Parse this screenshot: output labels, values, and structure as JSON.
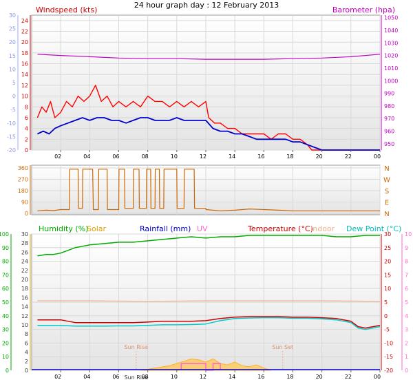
{
  "chart_data": [
    {
      "type": "line",
      "title": "24 hour graph day : 12 February 2013",
      "left_axis_label": "Windspeed (kts)",
      "right_axis_label": "Barometer (hpa)",
      "outer_left_ticks": [
        "30",
        "25",
        "20",
        "15",
        "10",
        "5",
        "0",
        "-5",
        "-10",
        "-15",
        "-20"
      ],
      "left_ticks": [
        "24",
        "22",
        "20",
        "18",
        "16",
        "14",
        "12",
        "10",
        "8",
        "6",
        "4",
        "2",
        "0"
      ],
      "right_ticks": [
        "1050",
        "1040",
        "1030",
        "1020",
        "1010",
        "1000",
        "990",
        "980",
        "970",
        "960",
        "950"
      ],
      "x_ticks": [
        "02",
        "04",
        "06",
        "08",
        "10",
        "12",
        "14",
        "16",
        "18",
        "20",
        "22",
        "00"
      ],
      "x_range_hours": [
        0,
        24
      ],
      "windspeed_ylim": [
        0,
        25
      ],
      "barometer_ylim": [
        945,
        1052
      ],
      "outer_left_ylim": [
        -20,
        30
      ],
      "series": [
        {
          "name": "Windspeed (kts)",
          "color": "#ff0000",
          "x": [
            0.4,
            0.7,
            1.0,
            1.3,
            1.6,
            2.0,
            2.4,
            2.8,
            3.2,
            3.6,
            4.0,
            4.4,
            4.8,
            5.2,
            5.6,
            6.0,
            6.5,
            7.0,
            7.5,
            8.0,
            8.5,
            9.0,
            9.5,
            10.0,
            10.5,
            11.0,
            11.5,
            12.0,
            12.2,
            12.6,
            13.0,
            13.5,
            14.0,
            14.5,
            15.0,
            15.5,
            16.0,
            16.5,
            17.0,
            17.5,
            18.0,
            18.5,
            19.0,
            19.3,
            19.6,
            20.0,
            20.5,
            21.0,
            21.5,
            22.0,
            22.5,
            23.0,
            23.5,
            24.0
          ],
          "y": [
            6,
            8,
            7,
            9,
            6,
            7,
            9,
            8,
            10,
            9,
            10,
            12,
            9,
            10,
            8,
            9,
            8,
            9,
            8,
            10,
            9,
            9,
            8,
            9,
            8,
            9,
            8,
            9,
            6,
            5,
            5,
            4,
            4,
            3,
            3,
            3,
            3,
            2,
            3,
            3,
            2,
            2,
            1,
            0,
            0,
            0,
            0,
            0,
            0,
            0,
            0,
            0,
            0,
            0
          ]
        },
        {
          "name": "Windspeed (kts) average",
          "color": "#0000cc",
          "x": [
            0.4,
            0.8,
            1.2,
            1.6,
            2.0,
            2.5,
            3.0,
            3.5,
            4.0,
            4.5,
            5.0,
            5.5,
            6.0,
            6.5,
            7.0,
            7.5,
            8.0,
            8.5,
            9.0,
            9.5,
            10.0,
            10.5,
            11.0,
            11.5,
            12.0,
            12.5,
            13.0,
            13.5,
            14.0,
            14.5,
            15.0,
            15.5,
            16.0,
            16.5,
            17.0,
            17.5,
            18.0,
            18.5,
            19.0,
            19.5,
            20.0,
            21.0,
            22.0,
            23.0,
            24.0
          ],
          "y": [
            3,
            3.5,
            3,
            4,
            4.5,
            5,
            5.5,
            6,
            5.5,
            6,
            6,
            5.5,
            5.5,
            5,
            5.5,
            6,
            6,
            5.5,
            5.5,
            5.5,
            6,
            5.5,
            5.5,
            5.5,
            5.5,
            4,
            3.5,
            3.5,
            3,
            3,
            2.5,
            2,
            2,
            2,
            2,
            2,
            1.5,
            1.5,
            1,
            0.5,
            0,
            0,
            0,
            0,
            0
          ]
        },
        {
          "name": "Barometer (hpa)",
          "color": "#c000c0",
          "x": [
            0.4,
            2,
            4,
            6,
            8,
            10,
            12,
            14,
            16,
            18,
            20,
            22,
            24
          ],
          "y": [
            1021,
            1020,
            1019,
            1018,
            1017.5,
            1017.5,
            1017,
            1017,
            1017,
            1017.5,
            1018,
            1019,
            1021
          ]
        }
      ]
    },
    {
      "type": "line",
      "title": "",
      "left_ticks": [
        "360",
        "270",
        "180",
        "90",
        "0"
      ],
      "right_labels": [
        "N",
        "W",
        "S",
        "E",
        "N"
      ],
      "x_range_hours": [
        0,
        24
      ],
      "ylim": [
        0,
        360
      ],
      "series": [
        {
          "name": "Wind direction",
          "color": "#cc6600",
          "x": [
            0.4,
            1,
            1.5,
            2,
            2.6,
            2.62,
            3.2,
            3.22,
            3.5,
            3.52,
            4.2,
            4.25,
            4.6,
            4.62,
            5.2,
            5.22,
            6.0,
            6.02,
            6.4,
            6.42,
            7.0,
            7.02,
            7.4,
            7.42,
            7.9,
            7.92,
            8.2,
            8.22,
            8.5,
            8.52,
            8.8,
            8.82,
            9.1,
            9.12,
            10.0,
            10.02,
            10.5,
            10.52,
            11.2,
            11.22,
            12.0,
            12.02,
            13,
            14,
            15,
            16,
            17,
            18,
            19,
            20,
            21,
            22,
            23,
            24
          ],
          "y": [
            20,
            25,
            22,
            30,
            30,
            350,
            350,
            40,
            40,
            350,
            350,
            30,
            30,
            350,
            350,
            30,
            30,
            350,
            350,
            40,
            40,
            350,
            350,
            40,
            40,
            350,
            350,
            40,
            40,
            350,
            350,
            40,
            40,
            350,
            350,
            40,
            40,
            350,
            350,
            40,
            40,
            30,
            20,
            25,
            35,
            30,
            25,
            20,
            20,
            20,
            20,
            20,
            20,
            20
          ]
        }
      ]
    },
    {
      "type": "line",
      "title": "",
      "legend": [
        "Humidity (%)",
        "Solar",
        "Rainfall (mm)",
        "UV",
        "Temperature (°C)",
        "Indoor",
        "Dew Point (°C)"
      ],
      "left_ticks_humidity": [
        "100",
        "90",
        "80",
        "70",
        "60",
        "50",
        "40",
        "30",
        "20",
        "10",
        "0"
      ],
      "left_ticks_solar": [
        "30",
        "28",
        "26",
        "24",
        "22",
        "20",
        "18",
        "16",
        "14",
        "12",
        "10",
        "8",
        "6",
        "4",
        "2",
        "0"
      ],
      "right_ticks_temp": [
        "30",
        "25",
        "20",
        "15",
        "10",
        "5",
        "0",
        "-5",
        "-10",
        "-15",
        "-20"
      ],
      "right_ticks_uv": [
        "10",
        "9",
        "8",
        "7",
        "6",
        "5",
        "4",
        "3",
        "2",
        "1",
        "0"
      ],
      "annotations": [
        "Sun Rise",
        "Sun Set"
      ],
      "x_ticks": [
        "02",
        "04",
        "06",
        "08",
        "10",
        "12",
        "14",
        "16",
        "18",
        "20",
        "22",
        "00"
      ],
      "x_range_hours": [
        0,
        24
      ],
      "humidity_ylim": [
        0,
        100
      ],
      "temp_ylim": [
        -20,
        30
      ],
      "sunrise_hour": 7.2,
      "sunset_hour": 17.3,
      "series": [
        {
          "name": "Humidity (%)",
          "color": "#00aa00",
          "x": [
            0.4,
            1.0,
            1.5,
            2.0,
            2.5,
            3.0,
            4.0,
            5.0,
            6.0,
            7.0,
            8.0,
            9.0,
            10.0,
            11.0,
            12.0,
            13.0,
            14.0,
            15.0,
            16.0,
            17.0,
            18.0,
            19.0,
            20.0,
            21.0,
            22.0,
            23.0,
            24.0
          ],
          "y": [
            84,
            85,
            85,
            86,
            88,
            90,
            92,
            93,
            94,
            94,
            95,
            96,
            97,
            98,
            97,
            98,
            98,
            99,
            99,
            99,
            99,
            99,
            99,
            98,
            98,
            99,
            99
          ]
        },
        {
          "name": "Temperature (°C)",
          "color": "#cc0000",
          "x": [
            0.4,
            1,
            2,
            3,
            4,
            5,
            6,
            7,
            8,
            9,
            10,
            11,
            12,
            13,
            14,
            15,
            16,
            17,
            18,
            19,
            20,
            21,
            22,
            22.5,
            23,
            24
          ],
          "y": [
            -1.5,
            -1.5,
            -1.5,
            -2.5,
            -2.5,
            -2.5,
            -2.5,
            -2.5,
            -2.3,
            -2,
            -2,
            -2,
            -1.8,
            -1,
            -0.5,
            -0.3,
            -0.3,
            -0.3,
            -0.5,
            -0.5,
            -0.7,
            -1,
            -2,
            -4,
            -4.5,
            -3.5
          ]
        },
        {
          "name": "Dew Point (°C)",
          "color": "#00cccc",
          "x": [
            0.4,
            1,
            2,
            3,
            4,
            5,
            6,
            7,
            8,
            9,
            10,
            11,
            12,
            13,
            14,
            15,
            16,
            17,
            18,
            19,
            20,
            21,
            22,
            22.5,
            23,
            24
          ],
          "y": [
            -3.5,
            -3.5,
            -3.5,
            -3.8,
            -3.8,
            -3.8,
            -3.7,
            -3.7,
            -3.5,
            -3.3,
            -3.3,
            -3.2,
            -3,
            -1.8,
            -1,
            -0.8,
            -0.7,
            -0.7,
            -0.9,
            -0.9,
            -1.1,
            -1.5,
            -2.5,
            -4.5,
            -5,
            -4
          ]
        },
        {
          "name": "Indoor",
          "color": "#f0b090",
          "x": [
            0.4,
            4,
            8,
            12,
            16,
            20,
            24
          ],
          "y": [
            5.5,
            5.5,
            5.3,
            5.5,
            5.5,
            5.5,
            5.3
          ]
        },
        {
          "name": "Solar",
          "color": "#ffaa00",
          "x": [
            7.5,
            8.5,
            9.5,
            10.0,
            10.5,
            11.0,
            11.5,
            12.0,
            12.5,
            13.0,
            13.5,
            14.0,
            14.5,
            15.0,
            15.5,
            16.0,
            16.5
          ],
          "y": [
            0,
            0.5,
            1,
            1.5,
            2,
            2.5,
            2.3,
            1.8,
            2.5,
            1.5,
            1.2,
            1.8,
            1.0,
            0.8,
            1.2,
            0.5,
            0
          ]
        },
        {
          "name": "UV",
          "color": "#ff66cc",
          "x": [
            10.3,
            10.3,
            12.0,
            12.0,
            12.5,
            12.5,
            13.0,
            13.0
          ],
          "y": [
            0,
            0.5,
            0.5,
            0,
            0,
            0.5,
            0.5,
            0
          ]
        }
      ]
    }
  ]
}
